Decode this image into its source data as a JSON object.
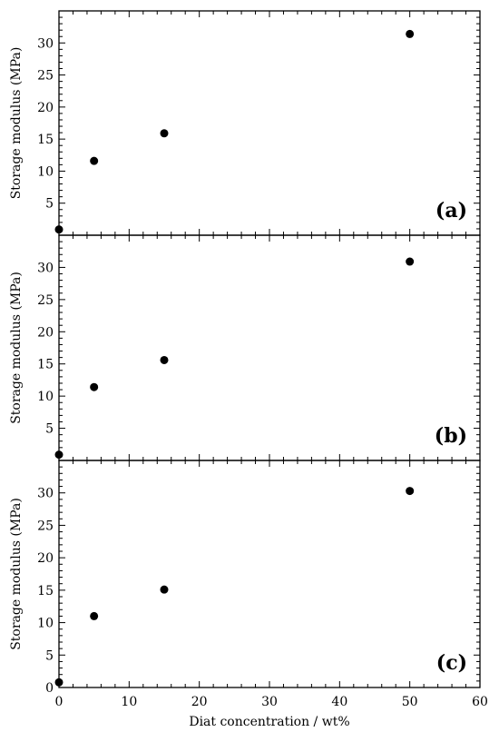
{
  "chart_data": [
    {
      "type": "scatter",
      "panel_label": "(a)",
      "ylabel": "Storage modulus (MPa)",
      "xlim": [
        0,
        60
      ],
      "ylim": [
        0,
        35
      ],
      "yticks": [
        5,
        10,
        15,
        20,
        25,
        30
      ],
      "yticklabels": [
        "5",
        "10",
        "15",
        "20",
        "25",
        "30"
      ],
      "points": [
        {
          "x": 0,
          "y": 0.9
        },
        {
          "x": 5,
          "y": 11.6
        },
        {
          "x": 15,
          "y": 15.9
        },
        {
          "x": 50,
          "y": 31.4
        }
      ]
    },
    {
      "type": "scatter",
      "panel_label": "(b)",
      "ylabel": "Storage modulus (MPa)",
      "xlim": [
        0,
        60
      ],
      "ylim": [
        0,
        35
      ],
      "yticks": [
        5,
        10,
        15,
        20,
        25,
        30
      ],
      "yticklabels": [
        "5",
        "10",
        "15",
        "20",
        "25",
        "30"
      ],
      "points": [
        {
          "x": 0,
          "y": 0.9
        },
        {
          "x": 5,
          "y": 11.4
        },
        {
          "x": 15,
          "y": 15.6
        },
        {
          "x": 50,
          "y": 30.9
        }
      ]
    },
    {
      "type": "scatter",
      "panel_label": "(c)",
      "ylabel": "Storage modulus (MPa)",
      "xlabel": "Diat concentration / wt%",
      "xlim": [
        0,
        60
      ],
      "ylim": [
        0,
        35
      ],
      "xticks": [
        0,
        10,
        20,
        30,
        40,
        50,
        60
      ],
      "xticklabels": [
        "0",
        "10",
        "20",
        "30",
        "40",
        "50",
        "60"
      ],
      "yticks": [
        0,
        5,
        10,
        15,
        20,
        25,
        30
      ],
      "yticklabels": [
        "0",
        "5",
        "10",
        "15",
        "20",
        "25",
        "30"
      ],
      "points": [
        {
          "x": 0,
          "y": 0.8
        },
        {
          "x": 5,
          "y": 11.0
        },
        {
          "x": 15,
          "y": 15.1
        },
        {
          "x": 50,
          "y": 30.3
        }
      ]
    }
  ]
}
